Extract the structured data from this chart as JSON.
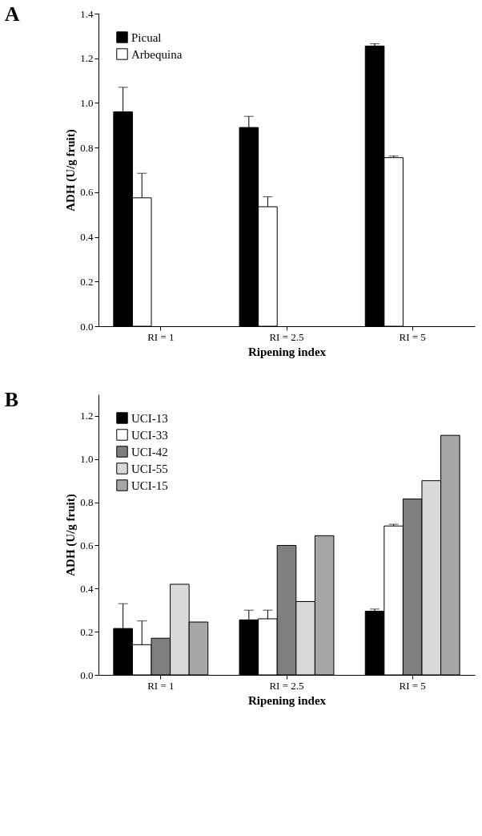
{
  "chart_data": [
    {
      "type": "bar",
      "title": "A",
      "xlabel": "Ripening index",
      "ylabel": "ADH (U/g fruit)",
      "categories": [
        "RI = 1",
        "RI = 2.5",
        "RI = 5"
      ],
      "ylim": [
        0,
        1.4
      ],
      "yticks": [
        {
          "value": 0,
          "label": "0.0"
        },
        {
          "value": 0.2,
          "label": "0.2"
        },
        {
          "value": 0.4,
          "label": "0.4"
        },
        {
          "value": 0.6,
          "label": "0.6"
        },
        {
          "value": 0.8,
          "label": "0.8"
        },
        {
          "value": 1.0,
          "label": "1.0"
        },
        {
          "value": 1.2,
          "label": "1.2"
        },
        {
          "value": 1.4,
          "label": "1.4"
        }
      ],
      "grid": false,
      "legend": "top left",
      "series": [
        {
          "name": "Picual",
          "color": "#000000",
          "values": [
            0.96,
            0.89,
            1.255
          ],
          "errors": [
            [
              0.96,
              1.07
            ],
            [
              0.89,
              0.94
            ],
            [
              1.255,
              1.265
            ]
          ]
        },
        {
          "name": "Arbequina",
          "color": "#ffffff",
          "values": [
            0.575,
            0.535,
            0.755
          ],
          "errors": [
            [
              0.575,
              0.685
            ],
            [
              0.535,
              0.58
            ],
            [
              0.755,
              0.762
            ]
          ]
        }
      ]
    },
    {
      "type": "bar",
      "title": "B",
      "xlabel": "Ripening index",
      "ylabel": "ADH (U/g fruit)",
      "categories": [
        "RI = 1",
        "RI = 2.5",
        "RI = 5"
      ],
      "ylim": [
        0,
        1.3
      ],
      "yticks": [
        {
          "value": 0,
          "label": "0.0"
        },
        {
          "value": 0.2,
          "label": "0.2"
        },
        {
          "value": 0.4,
          "label": "0.4"
        },
        {
          "value": 0.6,
          "label": "0.6"
        },
        {
          "value": 0.8,
          "label": "0.8"
        },
        {
          "value": 1.0,
          "label": "1.0"
        },
        {
          "value": 1.2,
          "label": "1.2"
        }
      ],
      "grid": false,
      "legend": "top left",
      "series": [
        {
          "name": "UCI-13",
          "color": "#000000",
          "values": [
            0.215,
            0.255,
            0.295
          ],
          "errors": [
            [
              0.215,
              0.33
            ],
            [
              0.255,
              0.3
            ],
            [
              0.295,
              0.305
            ]
          ]
        },
        {
          "name": "UCI-33",
          "color": "#ffffff",
          "values": [
            0.14,
            0.26,
            0.69
          ],
          "errors": [
            [
              0.14,
              0.25
            ],
            [
              0.26,
              0.3
            ],
            [
              0.69,
              0.698
            ]
          ]
        },
        {
          "name": "UCI-42",
          "color": "#7f7f7f",
          "values": [
            0.17,
            0.6,
            0.815
          ]
        },
        {
          "name": "UCI-55",
          "color": "#d9d9d9",
          "values": [
            0.42,
            0.34,
            0.9
          ]
        },
        {
          "name": "UCI-15",
          "color": "#a6a6a6",
          "values": [
            0.245,
            0.645,
            1.11
          ]
        }
      ]
    }
  ]
}
